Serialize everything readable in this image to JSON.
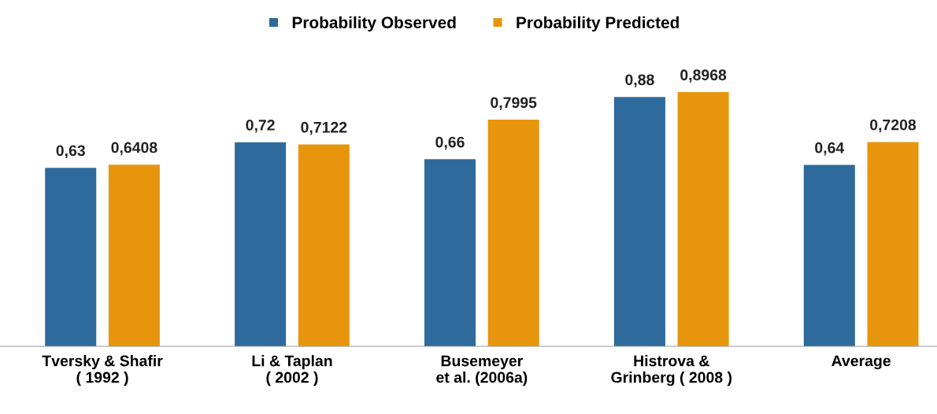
{
  "chart_data": {
    "type": "bar",
    "categories": [
      "Tversky & Shafir\n( 1992 )",
      "Li & Taplan\n( 2002 )",
      "Busemeyer\net al. (2006a)",
      "Histrova &\nGrinberg ( 2008 )",
      "Average"
    ],
    "series": [
      {
        "name": "Probability Observed",
        "color": "#2e6a9c",
        "values": [
          0.63,
          0.72,
          0.66,
          0.88,
          0.64
        ],
        "value_labels": [
          "0,63",
          "0,72",
          "0,66",
          "0,88",
          "0,64"
        ]
      },
      {
        "name": "Probability Predicted",
        "color": "#e8950e",
        "values": [
          0.6408,
          0.7122,
          0.7995,
          0.8968,
          0.7208
        ],
        "value_labels": [
          "0,6408",
          "0,7122",
          "0,7995",
          "0,8968",
          "0,7208"
        ]
      }
    ],
    "legend": "top",
    "grid": false,
    "tick_labels": "x"
  }
}
